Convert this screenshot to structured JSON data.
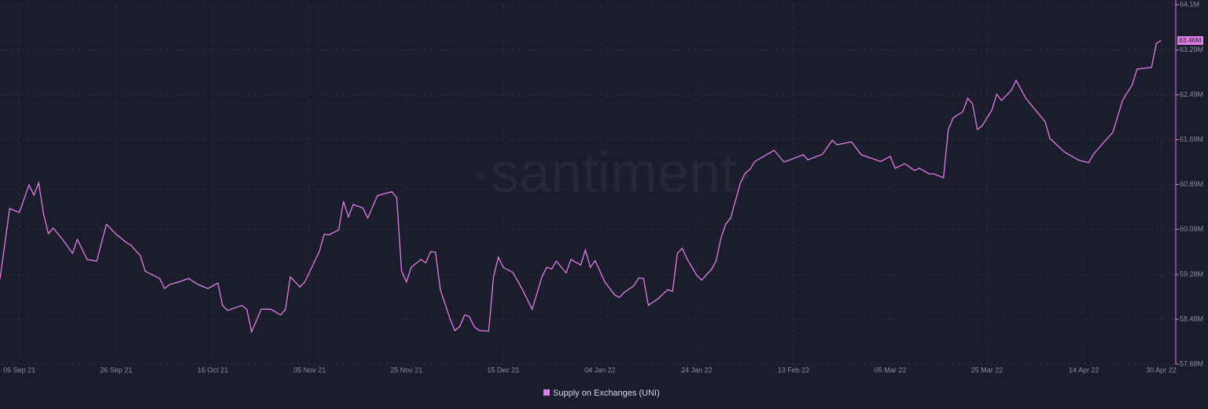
{
  "chart_data": {
    "type": "line",
    "watermark": "·santiment·",
    "x": [
      "2021-09-02",
      "2021-09-04",
      "2021-09-06",
      "2021-09-08",
      "2021-09-09",
      "2021-09-10",
      "2021-09-11",
      "2021-09-12",
      "2021-09-13",
      "2021-09-15",
      "2021-09-17",
      "2021-09-18",
      "2021-09-20",
      "2021-09-22",
      "2021-09-24",
      "2021-09-26",
      "2021-09-28",
      "2021-09-29",
      "2021-10-01",
      "2021-10-02",
      "2021-10-05",
      "2021-10-06",
      "2021-10-07",
      "2021-10-09",
      "2021-10-11",
      "2021-10-13",
      "2021-10-15",
      "2021-10-17",
      "2021-10-18",
      "2021-10-19",
      "2021-10-22",
      "2021-10-23",
      "2021-10-24",
      "2021-10-26",
      "2021-10-28",
      "2021-10-30",
      "2021-10-31",
      "2021-11-01",
      "2021-11-03",
      "2021-11-04",
      "2021-11-07",
      "2021-11-08",
      "2021-11-09",
      "2021-11-11",
      "2021-11-12",
      "2021-11-13",
      "2021-11-14",
      "2021-11-16",
      "2021-11-17",
      "2021-11-19",
      "2021-11-22",
      "2021-11-23",
      "2021-11-24",
      "2021-11-25",
      "2021-11-26",
      "2021-11-28",
      "2021-11-29",
      "2021-11-30",
      "2021-12-01",
      "2021-12-02",
      "2021-12-04",
      "2021-12-05",
      "2021-12-06",
      "2021-12-07",
      "2021-12-08",
      "2021-12-09",
      "2021-12-10",
      "2021-12-12",
      "2021-12-13",
      "2021-12-14",
      "2021-12-15",
      "2021-12-17",
      "2021-12-19",
      "2021-12-21",
      "2021-12-23",
      "2021-12-24",
      "2021-12-25",
      "2021-12-26",
      "2021-12-28",
      "2021-12-29",
      "2021-12-31",
      "2022-01-01",
      "2022-01-02",
      "2022-01-03",
      "2022-01-05",
      "2022-01-07",
      "2022-01-08",
      "2022-01-09",
      "2022-01-11",
      "2022-01-12",
      "2022-01-13",
      "2022-01-14",
      "2022-01-16",
      "2022-01-18",
      "2022-01-19",
      "2022-01-20",
      "2022-01-21",
      "2022-01-22",
      "2022-01-24",
      "2022-01-25",
      "2022-01-27",
      "2022-01-28",
      "2022-01-29",
      "2022-01-30",
      "2022-01-31",
      "2022-02-02",
      "2022-02-03",
      "2022-02-04",
      "2022-02-05",
      "2022-02-07",
      "2022-02-09",
      "2022-02-11",
      "2022-02-12",
      "2022-02-15",
      "2022-02-16",
      "2022-02-19",
      "2022-02-21",
      "2022-02-22",
      "2022-02-25",
      "2022-02-27",
      "2022-03-01",
      "2022-03-03",
      "2022-03-05",
      "2022-03-06",
      "2022-03-08",
      "2022-03-10",
      "2022-03-11",
      "2022-03-13",
      "2022-03-14",
      "2022-03-16",
      "2022-03-17",
      "2022-03-18",
      "2022-03-20",
      "2022-03-21",
      "2022-03-22",
      "2022-03-23",
      "2022-03-24",
      "2022-03-26",
      "2022-03-27",
      "2022-03-28",
      "2022-03-30",
      "2022-03-31",
      "2022-04-02",
      "2022-04-04",
      "2022-04-06",
      "2022-04-07",
      "2022-04-10",
      "2022-04-11",
      "2022-04-13",
      "2022-04-15",
      "2022-04-16",
      "2022-04-18",
      "2022-04-20",
      "2022-04-22",
      "2022-04-24",
      "2022-04-25",
      "2022-04-28",
      "2022-04-29",
      "2022-04-30"
    ],
    "series": [
      {
        "name": "Supply on Exchanges (UNI)",
        "color": "#e07ee6",
        "values": [
          59.2,
          60.46,
          60.39,
          60.88,
          60.7,
          60.92,
          60.36,
          60.01,
          60.11,
          59.9,
          59.66,
          59.91,
          59.55,
          59.52,
          60.18,
          60.0,
          59.86,
          59.81,
          59.62,
          59.34,
          59.21,
          59.03,
          59.1,
          59.15,
          59.21,
          59.1,
          59.03,
          59.13,
          58.73,
          58.64,
          58.73,
          58.66,
          58.26,
          58.66,
          58.66,
          58.56,
          58.66,
          59.24,
          59.06,
          59.15,
          59.69,
          60.0,
          59.99,
          60.08,
          60.59,
          60.31,
          60.53,
          60.47,
          60.29,
          60.69,
          60.76,
          60.65,
          59.34,
          59.15,
          59.41,
          59.55,
          59.49,
          59.69,
          59.68,
          59.01,
          58.49,
          58.28,
          58.35,
          58.56,
          58.53,
          58.35,
          58.28,
          58.27,
          59.24,
          59.59,
          59.41,
          59.32,
          59.01,
          58.66,
          59.24,
          59.41,
          59.38,
          59.52,
          59.31,
          59.55,
          59.45,
          59.72,
          59.41,
          59.53,
          59.15,
          58.92,
          58.87,
          58.96,
          59.08,
          59.22,
          59.21,
          58.73,
          58.85,
          59.01,
          58.98,
          59.66,
          59.75,
          59.56,
          59.27,
          59.18,
          59.37,
          59.52,
          59.93,
          60.18,
          60.29,
          60.91,
          61.09,
          61.16,
          61.3,
          61.4,
          61.5,
          61.29,
          61.32,
          61.42,
          61.33,
          61.43,
          61.68,
          61.6,
          61.65,
          61.42,
          61.36,
          61.3,
          61.39,
          61.18,
          61.26,
          61.14,
          61.18,
          61.08,
          61.08,
          61.01,
          61.87,
          62.08,
          62.19,
          62.43,
          62.33,
          61.87,
          61.94,
          62.22,
          62.5,
          62.39,
          62.57,
          62.75,
          62.43,
          62.22,
          62.01,
          61.71,
          61.47,
          61.42,
          61.32,
          61.28,
          61.43,
          61.63,
          61.82,
          62.39,
          62.67,
          62.95,
          62.98,
          63.41,
          63.46
        ]
      }
    ],
    "last_value_label": "63.46M",
    "xlim": [
      "2021-09-02",
      "2022-05-03"
    ],
    "xticks": [
      {
        "value": "2021-09-06",
        "label": "06 Sep 21"
      },
      {
        "value": "2021-09-26",
        "label": "26 Sep 21"
      },
      {
        "value": "2021-10-16",
        "label": "16 Oct 21"
      },
      {
        "value": "2021-11-05",
        "label": "05 Nov 21"
      },
      {
        "value": "2021-11-25",
        "label": "25 Nov 21"
      },
      {
        "value": "2021-12-15",
        "label": "15 Dec 21"
      },
      {
        "value": "2022-01-04",
        "label": "04 Jan 22"
      },
      {
        "value": "2022-01-24",
        "label": "24 Jan 22"
      },
      {
        "value": "2022-02-13",
        "label": "13 Feb 22"
      },
      {
        "value": "2022-03-05",
        "label": "05 Mar 22"
      },
      {
        "value": "2022-03-25",
        "label": "25 Mar 22"
      },
      {
        "value": "2022-04-14",
        "label": "14 Apr 22"
      },
      {
        "value": "2022-04-30",
        "label": "30 Apr 22"
      }
    ],
    "ylim": [
      57.68,
      64.1
    ],
    "yticks": [
      {
        "value": 57.68,
        "label": "57.68M"
      },
      {
        "value": 58.48,
        "label": "58.48M"
      },
      {
        "value": 59.28,
        "label": "59.28M"
      },
      {
        "value": 60.09,
        "label": "60.09M"
      },
      {
        "value": 60.89,
        "label": "60.89M"
      },
      {
        "value": 61.69,
        "label": "61.69M"
      },
      {
        "value": 62.49,
        "label": "62.49M"
      },
      {
        "value": 63.29,
        "label": "63.29M"
      },
      {
        "value": 64.1,
        "label": "64.1M"
      }
    ],
    "grid": true
  }
}
